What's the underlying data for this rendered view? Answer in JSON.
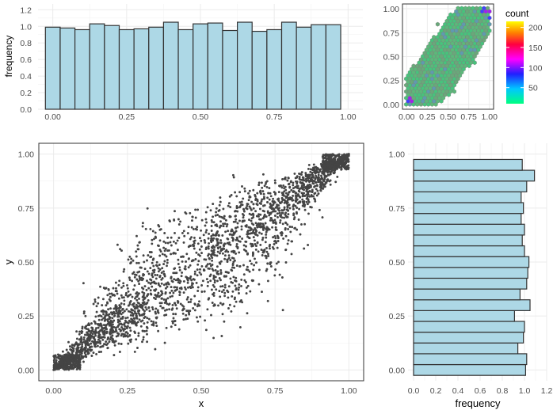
{
  "chart_data": [
    {
      "type": "bar",
      "role": "x-marginal-histogram",
      "ylabel": "frequency",
      "xlim": [
        -0.05,
        1.05
      ],
      "ylim": [
        0,
        1.2
      ],
      "xticks": [
        "0.00",
        "0.25",
        "0.50",
        "0.75",
        "1.00"
      ],
      "yticks": [
        "0.0",
        "0.2",
        "0.4",
        "0.6",
        "0.8",
        "1.0",
        "1.2"
      ],
      "bin_width": 0.05,
      "bin_centers": [
        0.0,
        0.05,
        0.1,
        0.15,
        0.2,
        0.25,
        0.3,
        0.35,
        0.4,
        0.45,
        0.5,
        0.55,
        0.6,
        0.65,
        0.7,
        0.75,
        0.8,
        0.85,
        0.9,
        0.95,
        1.0
      ],
      "values": [
        0.99,
        0.98,
        0.96,
        1.03,
        1.01,
        0.96,
        0.97,
        0.99,
        1.05,
        0.96,
        1.03,
        1.04,
        0.95,
        1.05,
        0.94,
        0.96,
        1.05,
        0.99,
        1.02,
        1.02,
        0
      ],
      "colors": {
        "fill": "#add8e6",
        "stroke": "#333333"
      }
    },
    {
      "type": "hexbin",
      "role": "density-panel",
      "xlim": [
        -0.05,
        1.05
      ],
      "ylim": [
        -0.05,
        1.05
      ],
      "xticks": [
        "0.00",
        "0.25",
        "0.50",
        "0.75",
        "1.00"
      ],
      "yticks": [
        "0.00",
        "0.25",
        "0.50",
        "0.75",
        "1.00"
      ],
      "legend": {
        "title": "count",
        "ticks": [
          "50",
          "100",
          "150",
          "200"
        ],
        "tick_values": [
          50,
          100,
          150,
          200
        ],
        "range": [
          10,
          215
        ]
      },
      "colors": {
        "low": "#00ff80",
        "mid": "#ff00ff",
        "high": "#ffff00"
      }
    },
    {
      "type": "scatter",
      "role": "main-scatter",
      "xlabel": "x",
      "ylabel": "y",
      "xlim": [
        -0.05,
        1.05
      ],
      "ylim": [
        -0.05,
        1.05
      ],
      "xticks": [
        "0.00",
        "0.25",
        "0.50",
        "0.75",
        "1.00"
      ],
      "yticks": [
        "0.00",
        "0.25",
        "0.50",
        "0.75",
        "1.00"
      ],
      "points": {
        "count": 10000,
        "x_range": [
          0,
          1
        ],
        "y_range": [
          0,
          1
        ],
        "correlation": 0.9
      },
      "colors": {
        "point": "#444444"
      }
    },
    {
      "type": "bar",
      "orientation": "horizontal",
      "role": "y-marginal-histogram",
      "xlabel": "frequency",
      "xlim": [
        -0.05,
        1.2
      ],
      "ylim": [
        -0.05,
        1.05
      ],
      "xticks": [
        "0.0",
        "0.2",
        "0.4",
        "0.6",
        "0.8",
        "1.0",
        "1.2"
      ],
      "yticks": [
        "0.00",
        "0.25",
        "0.50",
        "0.75",
        "1.00"
      ],
      "bin_width": 0.05,
      "bin_centers": [
        0.0,
        0.05,
        0.1,
        0.15,
        0.2,
        0.25,
        0.3,
        0.35,
        0.4,
        0.45,
        0.5,
        0.55,
        0.6,
        0.65,
        0.7,
        0.75,
        0.8,
        0.85,
        0.9,
        0.95,
        1.0
      ],
      "values": [
        1.01,
        1.02,
        0.94,
        0.99,
        1.0,
        0.91,
        1.05,
        0.96,
        1.02,
        1.03,
        1.04,
        1.0,
        0.98,
        1.0,
        0.97,
        0.99,
        0.97,
        1.02,
        1.09,
        0.98,
        0
      ],
      "colors": {
        "fill": "#add8e6",
        "stroke": "#333333"
      }
    }
  ]
}
